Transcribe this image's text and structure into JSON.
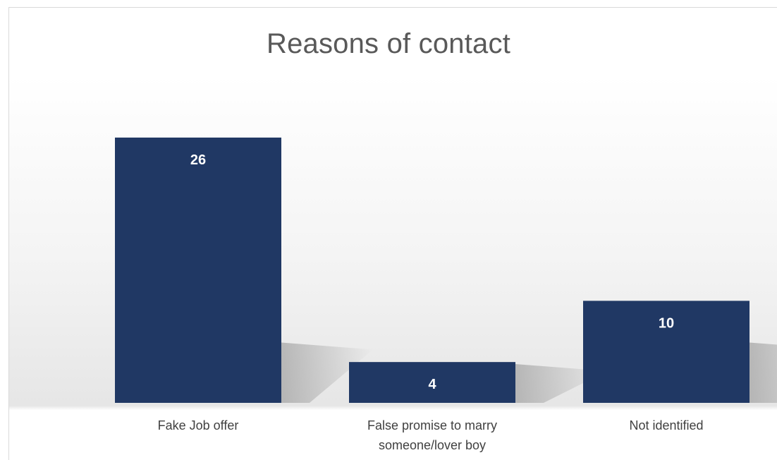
{
  "chart_data": {
    "type": "bar",
    "title": "Reasons of contact",
    "categories": [
      [
        "Fake Job offer"
      ],
      [
        "False promise to marry",
        "someone/lover boy"
      ],
      [
        "Not identified"
      ]
    ],
    "values": [
      26,
      4,
      10
    ],
    "ylim": [
      0,
      30
    ],
    "grid": false,
    "bar_color": "#203864",
    "label_color": "#ffffff"
  }
}
